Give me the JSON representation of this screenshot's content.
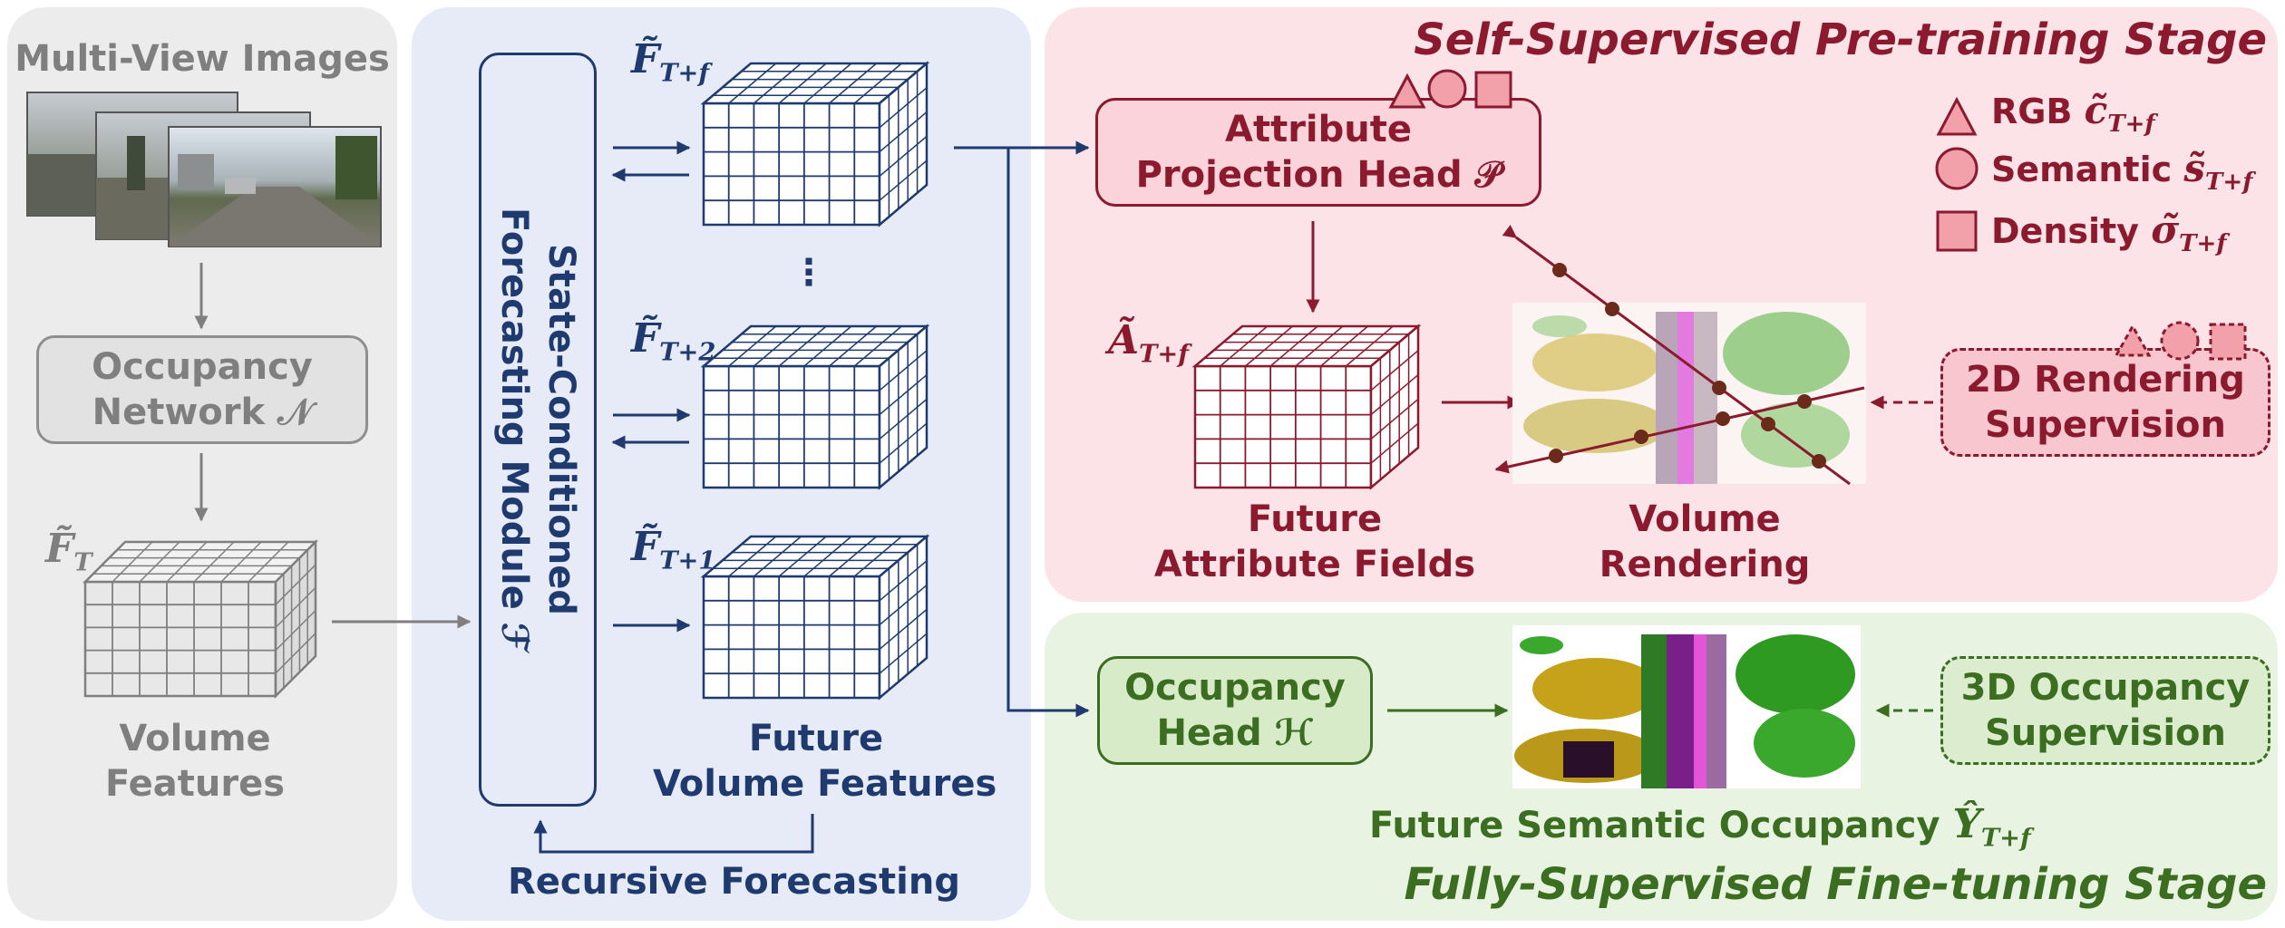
{
  "input_stage": {
    "images_label": "Multi-View Images",
    "network_label_1": "Occupancy",
    "network_label_2": "Network 𝒩",
    "current_feature_symbol": "F̃",
    "current_feature_subscript": "T",
    "volume_label_1": "Volume",
    "volume_label_2": "Features"
  },
  "forecasting": {
    "module_label_1": "State-Conditioned",
    "module_label_2": "Forecasting  Module ℱ",
    "feature_symbol": "F̃",
    "future_subscripts": [
      "T+f",
      "T+2",
      "T+1"
    ],
    "ellipsis": "⋮",
    "future_label_1": "Future",
    "future_label_2": "Volume  Features",
    "recursive_label": "Recursive Forecasting"
  },
  "pretraining": {
    "stage_title": "Self-Supervised Pre-training Stage",
    "head_label_1": "Attribute",
    "head_label_2": "Projection Head 𝒫",
    "attr_symbol": "Ã",
    "attr_subscript": "T+f",
    "fields_label_1": "Future",
    "fields_label_2": "Attribute Fields",
    "render_label_1": "Volume",
    "render_label_2": "Rendering",
    "supervision_label_1": "2D Rendering",
    "supervision_label_2": "Supervision",
    "legend": [
      {
        "shape": "triangle",
        "label": "RGB",
        "symbol": "c̃",
        "subscript": "T+f"
      },
      {
        "shape": "circle",
        "label": "Semantic",
        "symbol": "s̃",
        "subscript": "T+f"
      },
      {
        "shape": "square",
        "label": "Density",
        "symbol": "σ̃",
        "subscript": "T+f"
      }
    ]
  },
  "finetuning": {
    "stage_title": "Fully-Supervised Fine-tuning Stage",
    "head_label_1": "Occupancy",
    "head_label_2": "Head ℋ",
    "supervision_label_1": "3D Occupancy",
    "supervision_label_2": "Supervision",
    "output_label": "Future Semantic Occupancy",
    "output_symbol": "Ŷ",
    "output_subscript": "T+f"
  },
  "colors": {
    "gray": "#7f7f7f",
    "navy": "#1f3a6e",
    "crimson": "#8b1a2e",
    "green": "#3b6e20",
    "gray_panel": "#ececec",
    "blue_panel": "#e6ebf7",
    "pink_panel": "#fbe3e8",
    "green_panel": "#e9f3e2",
    "pink_fill": "#f2a0aa",
    "green_fill": "#d8ebc9"
  }
}
